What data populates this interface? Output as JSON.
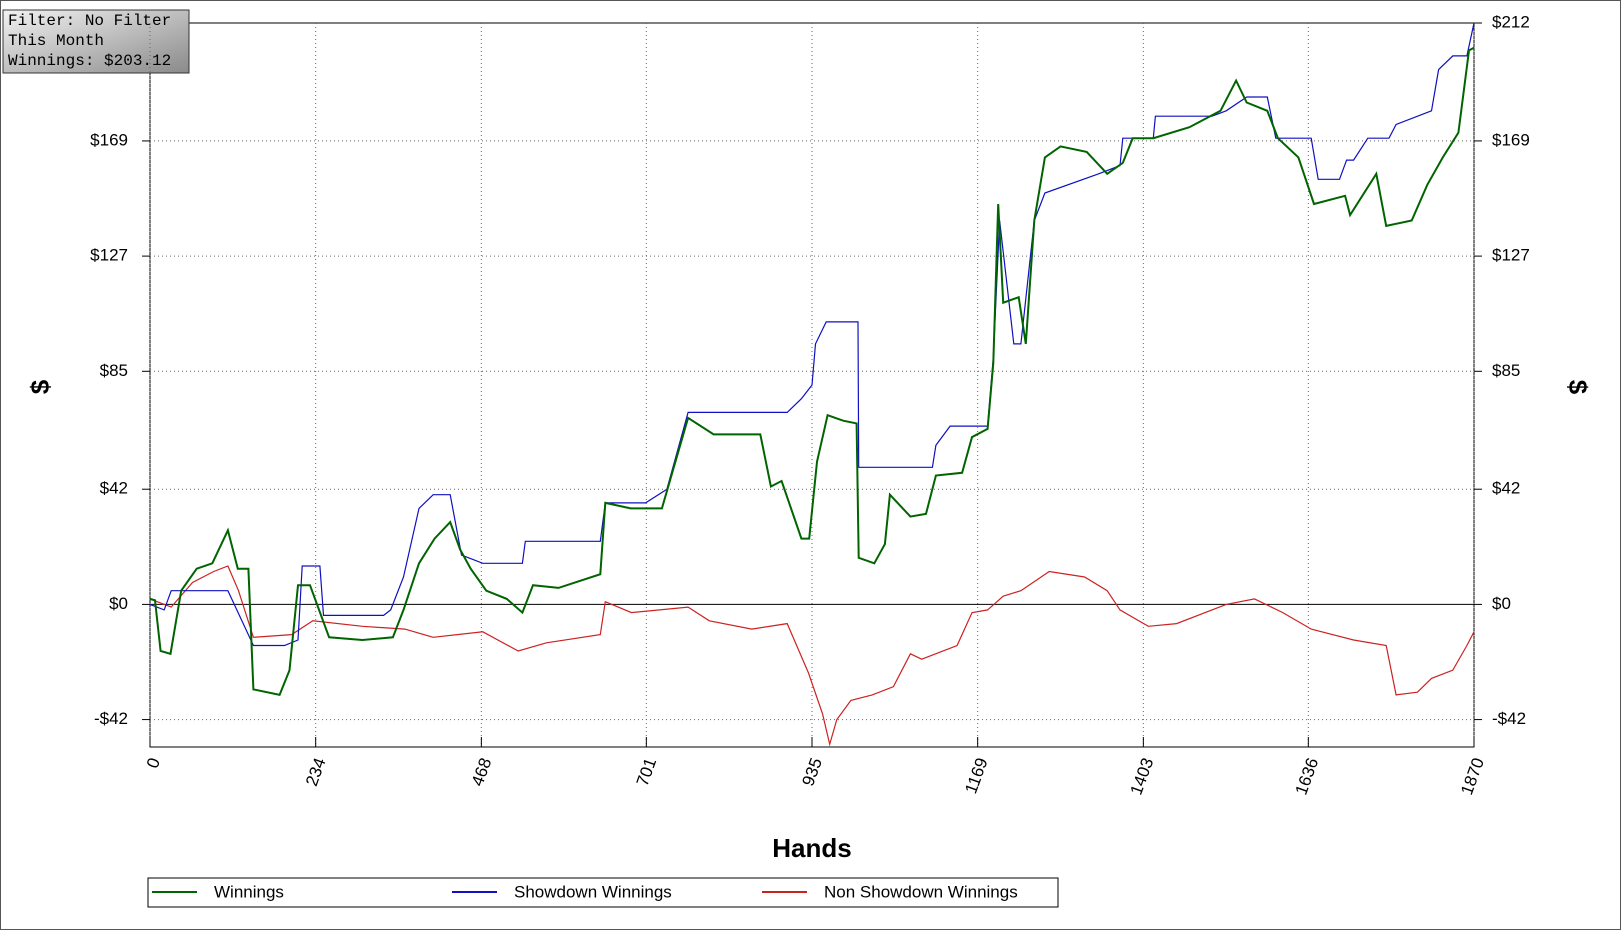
{
  "info_box": {
    "lines": [
      "Filter: No Filter",
      "This Month",
      "Winnings: $203.12"
    ]
  },
  "chart_data": {
    "type": "line",
    "xlabel": "Hands",
    "ylabel": "$",
    "y2label": "$",
    "xlim": [
      0,
      1870
    ],
    "xticks": [
      0,
      234,
      468,
      701,
      935,
      1169,
      1403,
      1636,
      1870
    ],
    "ylim": [
      -52,
      212
    ],
    "yticks": [
      {
        "value": -42,
        "label": "-$42"
      },
      {
        "value": 0,
        "label": "$0"
      },
      {
        "value": 42,
        "label": "$42"
      },
      {
        "value": 85,
        "label": "$85"
      },
      {
        "value": 127,
        "label": "$127"
      },
      {
        "value": 169,
        "label": "$169"
      }
    ],
    "y2lim": [
      -52,
      212
    ],
    "y2ticks": [
      {
        "value": -42,
        "label": "-$42"
      },
      {
        "value": 0,
        "label": "$0"
      },
      {
        "value": 42,
        "label": "$42"
      },
      {
        "value": 85,
        "label": "$85"
      },
      {
        "value": 127,
        "label": "$127"
      },
      {
        "value": 169,
        "label": "$169"
      },
      {
        "value": 212,
        "label": "$212"
      }
    ],
    "grid": true,
    "legend": "bottom",
    "series": [
      {
        "name": "Winnings",
        "color": "#006400",
        "x": [
          0,
          7,
          15,
          29,
          44,
          66,
          88,
          110,
          124,
          139,
          146,
          183,
          197,
          209,
          226,
          253,
          300,
          343,
          358,
          380,
          402,
          424,
          438,
          453,
          475,
          504,
          526,
          541,
          577,
          636,
          643,
          679,
          723,
          760,
          796,
          862,
          877,
          892,
          920,
          931,
          942,
          957,
          979,
          998,
          1001,
          1023,
          1038,
          1045,
          1074,
          1096,
          1110,
          1147,
          1161,
          1183,
          1191,
          1198,
          1205,
          1227,
          1237,
          1249,
          1264,
          1286,
          1323,
          1352,
          1374,
          1388,
          1417,
          1468,
          1512,
          1534,
          1549,
          1578,
          1593,
          1622,
          1644,
          1688,
          1695,
          1732,
          1746,
          1782,
          1804,
          1826,
          1848,
          1863,
          1870
        ],
        "values": [
          2,
          1.5,
          -17,
          -18,
          5,
          13,
          15,
          27,
          13,
          13,
          -31,
          -33,
          -24,
          7,
          7,
          -12,
          -13,
          -12,
          -2,
          15,
          24,
          30,
          20,
          13,
          5,
          2,
          -3,
          7,
          6,
          11,
          37,
          35,
          35,
          68,
          62,
          62,
          43,
          45,
          24,
          24,
          52,
          69,
          67,
          66,
          17,
          15,
          22,
          40,
          32,
          33,
          47,
          48,
          61,
          64,
          88,
          146,
          110,
          112,
          95,
          140,
          163,
          167,
          165,
          157,
          161,
          170,
          170,
          174,
          180,
          191,
          183,
          180,
          170,
          163,
          146,
          149,
          142,
          157,
          138,
          140,
          153,
          163,
          172,
          202,
          203
        ]
      },
      {
        "name": "Showdown Winnings",
        "color": "#1010c0",
        "x": [
          0,
          20,
          30,
          110,
          146,
          190,
          209,
          215,
          240,
          245,
          330,
          340,
          358,
          380,
          400,
          424,
          440,
          470,
          526,
          530,
          636,
          643,
          700,
          730,
          760,
          900,
          920,
          935,
          940,
          955,
          1000,
          1001,
          1105,
          1110,
          1130,
          1183,
          1191,
          1200,
          1220,
          1230,
          1249,
          1264,
          1340,
          1370,
          1374,
          1417,
          1420,
          1500,
          1520,
          1549,
          1578,
          1590,
          1640,
          1650,
          1680,
          1690,
          1700,
          1720,
          1750,
          1760,
          1810,
          1820,
          1840,
          1860,
          1870
        ],
        "values": [
          0,
          -2,
          5,
          5,
          -15,
          -15,
          -13,
          14,
          14,
          -4,
          -4,
          -2,
          10,
          35,
          40,
          40,
          18,
          15,
          15,
          23,
          23,
          37,
          37,
          42,
          70,
          70,
          75,
          80,
          95,
          103,
          103,
          50,
          50,
          58,
          65,
          65,
          90,
          140,
          95,
          95,
          140,
          150,
          157,
          160,
          170,
          170,
          178,
          178,
          180,
          185,
          185,
          170,
          170,
          155,
          155,
          162,
          162,
          170,
          170,
          175,
          180,
          195,
          200,
          200,
          212
        ]
      },
      {
        "name": "Non Showdown Winnings",
        "color": "#cc2222",
        "x": [
          0,
          30,
          60,
          90,
          110,
          125,
          146,
          200,
          230,
          300,
          360,
          400,
          470,
          520,
          560,
          636,
          643,
          680,
          760,
          790,
          850,
          900,
          930,
          950,
          960,
          970,
          990,
          1020,
          1050,
          1074,
          1090,
          1140,
          1161,
          1183,
          1205,
          1230,
          1270,
          1320,
          1352,
          1370,
          1410,
          1450,
          1520,
          1560,
          1600,
          1640,
          1700,
          1746,
          1760,
          1790,
          1810,
          1840,
          1860,
          1870
        ],
        "values": [
          2,
          -1,
          8,
          12,
          14,
          5,
          -12,
          -11,
          -6,
          -8,
          -9,
          -12,
          -10,
          -17,
          -14,
          -11,
          1,
          -3,
          -1,
          -6,
          -9,
          -7,
          -25,
          -40,
          -51,
          -42,
          -35,
          -33,
          -30,
          -18,
          -20,
          -15,
          -3,
          -2,
          3,
          5,
          12,
          10,
          5,
          -2,
          -8,
          -7,
          0,
          2,
          -3,
          -9,
          -13,
          -15,
          -33,
          -32,
          -27,
          -24,
          -15,
          -10
        ]
      }
    ]
  }
}
